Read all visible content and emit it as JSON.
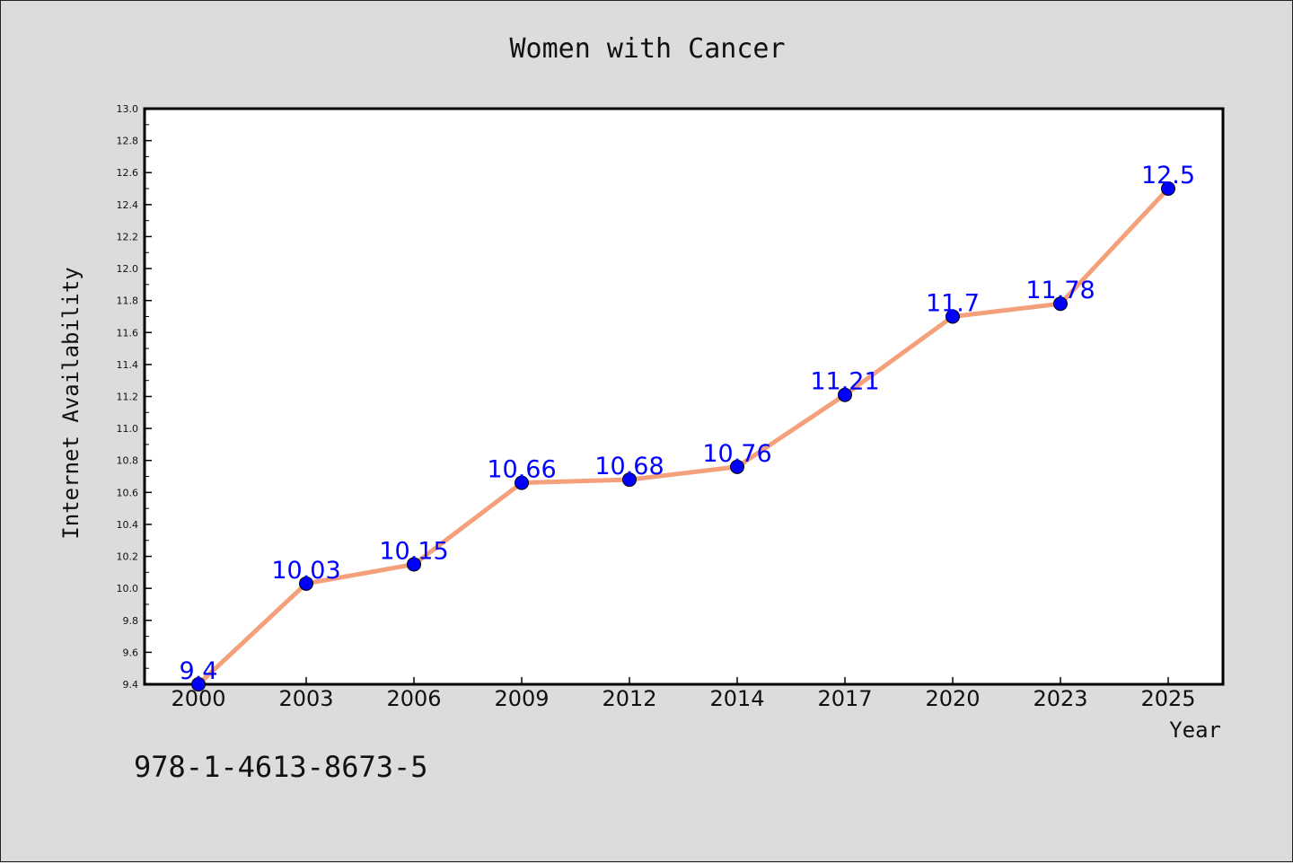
{
  "page": {
    "background_color": "#dcdcdc",
    "footer_code": "978-1-4613-8673-5"
  },
  "chart_data": {
    "type": "line",
    "title": "Women with Cancer",
    "xlabel": "Year",
    "ylabel": "Internet Availability",
    "categories": [
      "2000",
      "2003",
      "2006",
      "2009",
      "2012",
      "2014",
      "2017",
      "2020",
      "2023",
      "2025"
    ],
    "series": [
      {
        "values": [
          9.4,
          10.03,
          10.15,
          10.66,
          10.68,
          10.76,
          11.21,
          11.7,
          11.78,
          12.5
        ],
        "labels": [
          "9.4",
          "10.03",
          "10.15",
          "10.66",
          "10.68",
          "10.76",
          "11.21",
          "11.7",
          "11.78",
          "12.5"
        ],
        "line_color": "#f4a07a",
        "marker_color": "#0000ff",
        "label_color": "#0000ff"
      }
    ],
    "ylim": [
      9.4,
      13.0
    ],
    "yticks": [
      "9.4",
      "9.6",
      "9.8",
      "10.0",
      "10.2",
      "10.4",
      "10.6",
      "10.8",
      "11.0",
      "11.2",
      "11.4",
      "11.6",
      "11.8",
      "12.0",
      "12.2",
      "12.4",
      "12.6",
      "12.8",
      "13.0"
    ],
    "grid": false,
    "legend": false,
    "plot_background": "#ffffff"
  }
}
